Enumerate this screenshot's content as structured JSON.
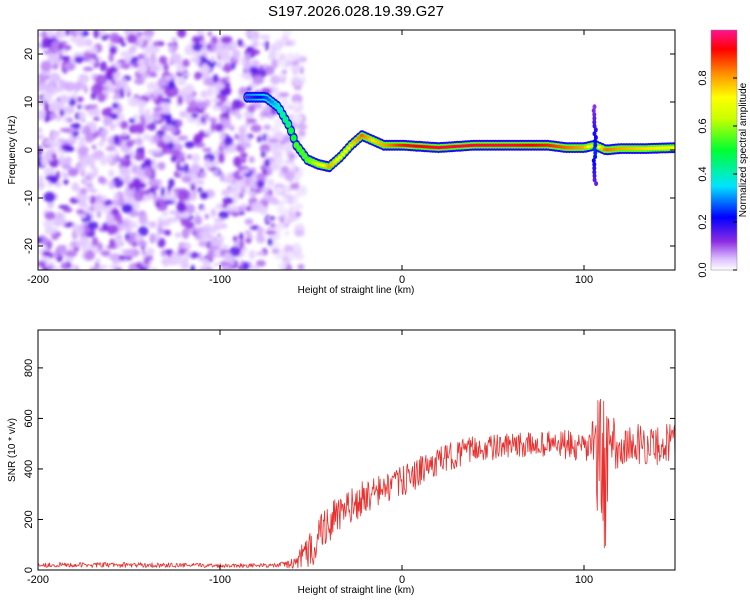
{
  "title": "S197.2026.028.19.39.G27",
  "chart_data": [
    {
      "type": "heatmap",
      "name": "spectrogram",
      "xlabel": "Height of straight line (km)",
      "ylabel": "Frequency (Hz)",
      "xlim": [
        -200,
        150
      ],
      "ylim": [
        -25,
        25
      ],
      "xticks": [
        -200,
        -100,
        0,
        100
      ],
      "yticks": [
        20,
        10,
        0,
        -10,
        -20
      ],
      "xtick_labels": [
        "-200",
        "-100",
        "0",
        "100"
      ],
      "ytick_labels": [
        "20",
        "10",
        "0",
        "-10",
        "-20"
      ],
      "noise_region_x": [
        -200,
        -60
      ],
      "frequency_track": {
        "x": [
          -85,
          -75,
          -68,
          -62,
          -58,
          -52,
          -46,
          -40,
          -34,
          -28,
          -22,
          -16,
          -10,
          0,
          20,
          40,
          60,
          80,
          90,
          100,
          106,
          112,
          120,
          135,
          150
        ],
        "y": [
          11,
          11,
          9,
          5,
          1,
          -2,
          -3,
          -3.5,
          -1.5,
          1,
          3,
          2,
          1,
          1,
          0.5,
          1,
          1,
          1,
          0.5,
          0.5,
          1,
          0,
          0.3,
          0.3,
          0.5
        ]
      },
      "amplitude": [
        0.15,
        0.25,
        0.35,
        0.45,
        0.55,
        0.55,
        0.65,
        0.8,
        0.7,
        0.75,
        0.85,
        0.75,
        0.8,
        0.9,
        0.95,
        0.95,
        0.95,
        0.9,
        0.85,
        0.8,
        0.6,
        0.85,
        0.8,
        0.75,
        0.7
      ],
      "colorbar": {
        "label": "Normalized spectral amplitude",
        "range": [
          0,
          1
        ],
        "ticks": [
          0.0,
          0.2,
          0.4,
          0.6,
          0.8
        ],
        "tick_labels": [
          "0.0",
          "0.2",
          "0.4",
          "0.6",
          "0.8"
        ]
      }
    },
    {
      "type": "line",
      "name": "snr",
      "xlabel": "Height of straight line (km)",
      "ylabel": "SNR (10 * v/v)",
      "xlim": [
        -200,
        150
      ],
      "ylim": [
        0,
        950
      ],
      "xticks": [
        -200,
        -100,
        0,
        100
      ],
      "yticks": [
        0,
        200,
        400,
        600,
        800
      ],
      "xtick_labels": [
        "-200",
        "-100",
        "0",
        "100"
      ],
      "ytick_labels": [
        "0",
        "200",
        "400",
        "600",
        "800"
      ],
      "color": "#e8302e",
      "series": [
        {
          "name": "SNR",
          "x": [
            -200,
            -150,
            -100,
            -70,
            -60,
            -50,
            -45,
            -40,
            -30,
            -20,
            -10,
            0,
            10,
            20,
            30,
            40,
            60,
            80,
            90,
            100,
            105,
            108,
            110,
            112,
            114,
            120,
            130,
            140,
            150
          ],
          "y": [
            20,
            20,
            18,
            18,
            25,
            80,
            150,
            190,
            240,
            290,
            320,
            350,
            390,
            430,
            460,
            480,
            490,
            500,
            495,
            470,
            520,
            400,
            550,
            300,
            520,
            480,
            500,
            490,
            510
          ],
          "noise": [
            10,
            10,
            8,
            8,
            20,
            80,
            90,
            80,
            70,
            70,
            60,
            60,
            60,
            55,
            55,
            50,
            50,
            50,
            60,
            60,
            90,
            300,
            350,
            300,
            120,
            80,
            80,
            80,
            80
          ]
        }
      ]
    }
  ]
}
